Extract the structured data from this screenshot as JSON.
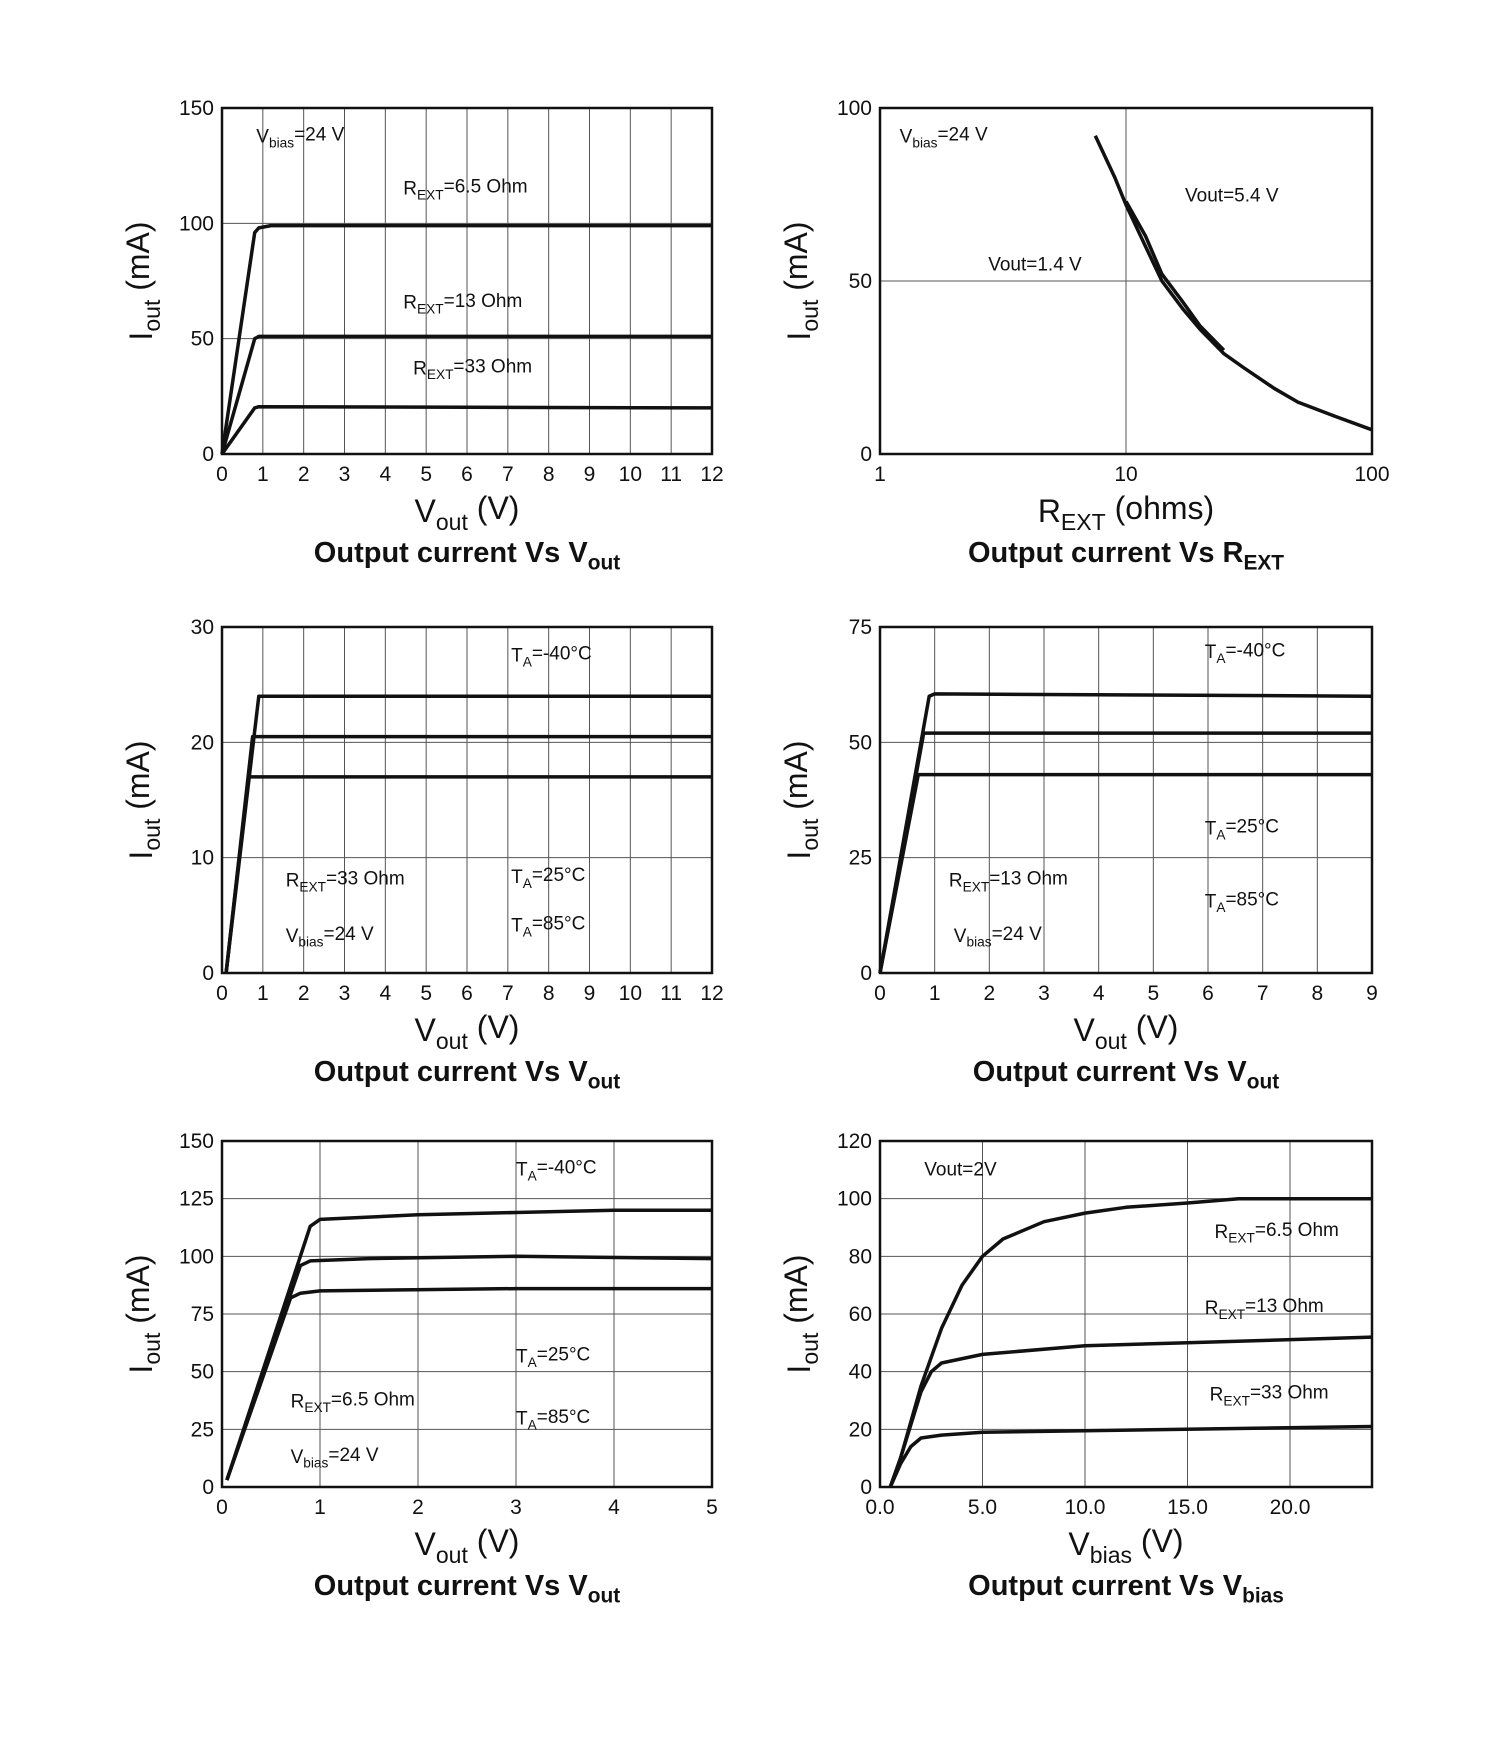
{
  "chart_data": [
    {
      "type": "line",
      "title": [
        {
          "text": "Output current Vs V"
        },
        {
          "text": "out",
          "sub": true
        }
      ],
      "x_label": [
        {
          "text": "V"
        },
        {
          "text": "out",
          "sub": true
        },
        {
          "text": " (V)"
        }
      ],
      "y_label": [
        {
          "text": "I"
        },
        {
          "text": "out",
          "sub": true
        },
        {
          "text": " (mA)"
        }
      ],
      "xlim": [
        0,
        12
      ],
      "xticks": [
        0,
        1,
        2,
        3,
        4,
        5,
        6,
        7,
        8,
        9,
        10,
        11,
        12
      ],
      "ylim": [
        0,
        150
      ],
      "yticks": [
        0,
        50,
        100,
        150
      ],
      "grid": true,
      "series": [
        {
          "color": "#111111",
          "x": [
            0,
            0.8,
            0.9,
            1.2,
            12
          ],
          "values": [
            0,
            96,
            98,
            99,
            99
          ]
        },
        {
          "color": "#111111",
          "x": [
            0,
            0.8,
            0.9,
            12
          ],
          "values": [
            0,
            50,
            51,
            51
          ]
        },
        {
          "color": "#111111",
          "x": [
            0,
            0.8,
            0.9,
            12
          ],
          "values": [
            0,
            20,
            20.5,
            20
          ]
        }
      ],
      "annotations": [
        [
          {
            "text": "V"
          },
          {
            "text": "bias",
            "sub": true
          },
          {
            "text": "=24 V"
          }
        ],
        [
          {
            "text": "R"
          },
          {
            "text": "EXT",
            "sub": true
          },
          {
            "text": "=6.5 Ohm"
          }
        ],
        [
          {
            "text": "R"
          },
          {
            "text": "EXT",
            "sub": true
          },
          {
            "text": "=13 Ohm"
          }
        ],
        [
          {
            "text": "R"
          },
          {
            "text": "EXT",
            "sub": true
          },
          {
            "text": "=33 Ohm"
          }
        ]
      ]
    },
    {
      "type": "line",
      "title": [
        {
          "text": "Output current Vs R"
        },
        {
          "text": "EXT",
          "sub": true
        }
      ],
      "x_label": [
        {
          "text": "R"
        },
        {
          "text": "EXT",
          "sub": true
        },
        {
          "text": " (ohms)"
        }
      ],
      "y_label": [
        {
          "text": "I"
        },
        {
          "text": "out",
          "sub": true
        },
        {
          "text": " (mA)"
        }
      ],
      "xscale": "log",
      "xlim": [
        1,
        100
      ],
      "xticks": [
        1,
        10,
        100
      ],
      "ylim": [
        0,
        100
      ],
      "yticks": [
        0,
        50,
        100
      ],
      "grid": true,
      "series": [
        {
          "color": "#111111",
          "x": [
            7.5,
            9,
            10,
            12,
            14,
            17,
            20,
            25,
            30,
            40,
            50,
            70,
            100
          ],
          "values": [
            92,
            80,
            72,
            60,
            50,
            42,
            36,
            29,
            25,
            19,
            15,
            11,
            7
          ]
        },
        {
          "color": "#111111",
          "x": [
            10,
            12,
            14,
            17,
            20,
            25
          ],
          "values": [
            73,
            63,
            52,
            44,
            37,
            30
          ]
        }
      ],
      "annotations": [
        [
          {
            "text": "V"
          },
          {
            "text": "bias",
            "sub": true
          },
          {
            "text": "=24 V"
          }
        ],
        [
          {
            "text": "Vout=5.4 V"
          }
        ],
        [
          {
            "text": "Vout=1.4 V"
          }
        ]
      ]
    },
    {
      "type": "line",
      "title": [
        {
          "text": "Output current Vs V"
        },
        {
          "text": "out",
          "sub": true
        }
      ],
      "x_label": [
        {
          "text": "V"
        },
        {
          "text": "out",
          "sub": true
        },
        {
          "text": " (V)"
        }
      ],
      "y_label": [
        {
          "text": "I"
        },
        {
          "text": "out",
          "sub": true
        },
        {
          "text": " (mA)"
        }
      ],
      "xlim": [
        0,
        12
      ],
      "xticks": [
        0,
        1,
        2,
        3,
        4,
        5,
        6,
        7,
        8,
        9,
        10,
        11,
        12
      ],
      "ylim": [
        0,
        30
      ],
      "yticks": [
        0,
        10,
        20,
        30
      ],
      "grid": true,
      "series": [
        {
          "color": "#111111",
          "x": [
            0.1,
            0.9,
            12
          ],
          "values": [
            0,
            24,
            24
          ]
        },
        {
          "color": "#111111",
          "x": [
            0.1,
            0.75,
            12
          ],
          "values": [
            0,
            20.5,
            20.5
          ]
        },
        {
          "color": "#111111",
          "x": [
            0.1,
            0.65,
            12
          ],
          "values": [
            0,
            17,
            17
          ]
        }
      ],
      "annotations": [
        [
          {
            "text": "T"
          },
          {
            "text": "A",
            "sub": true
          },
          {
            "text": "=-40°C"
          }
        ],
        [
          {
            "text": "T"
          },
          {
            "text": "A",
            "sub": true
          },
          {
            "text": "=25°C"
          }
        ],
        [
          {
            "text": "T"
          },
          {
            "text": "A",
            "sub": true
          },
          {
            "text": "=85°C"
          }
        ],
        [
          {
            "text": "R"
          },
          {
            "text": "EXT",
            "sub": true
          },
          {
            "text": "=33 Ohm"
          }
        ],
        [
          {
            "text": "V"
          },
          {
            "text": "bias",
            "sub": true
          },
          {
            "text": "=24 V"
          }
        ]
      ]
    },
    {
      "type": "line",
      "title": [
        {
          "text": "Output current Vs V"
        },
        {
          "text": "out",
          "sub": true
        }
      ],
      "x_label": [
        {
          "text": "V"
        },
        {
          "text": "out",
          "sub": true
        },
        {
          "text": " (V)"
        }
      ],
      "y_label": [
        {
          "text": "I"
        },
        {
          "text": "out",
          "sub": true
        },
        {
          "text": " (mA)"
        }
      ],
      "xlim": [
        0,
        9
      ],
      "xticks": [
        0,
        1,
        2,
        3,
        4,
        5,
        6,
        7,
        8,
        9
      ],
      "ylim": [
        0,
        75
      ],
      "yticks": [
        0,
        25,
        50,
        75
      ],
      "grid": true,
      "series": [
        {
          "color": "#111111",
          "x": [
            0,
            0.9,
            1,
            9
          ],
          "values": [
            0,
            60,
            60.5,
            60
          ]
        },
        {
          "color": "#111111",
          "x": [
            0,
            0.8,
            9
          ],
          "values": [
            0,
            52,
            52
          ]
        },
        {
          "color": "#111111",
          "x": [
            0,
            0.7,
            9
          ],
          "values": [
            0,
            43,
            43
          ]
        }
      ],
      "annotations": [
        [
          {
            "text": "T"
          },
          {
            "text": "A",
            "sub": true
          },
          {
            "text": "=-40°C"
          }
        ],
        [
          {
            "text": "T"
          },
          {
            "text": "A",
            "sub": true
          },
          {
            "text": "=25°C"
          }
        ],
        [
          {
            "text": "T"
          },
          {
            "text": "A",
            "sub": true
          },
          {
            "text": "=85°C"
          }
        ],
        [
          {
            "text": "R"
          },
          {
            "text": "EXT",
            "sub": true
          },
          {
            "text": "=13 Ohm"
          }
        ],
        [
          {
            "text": "V"
          },
          {
            "text": "bias",
            "sub": true
          },
          {
            "text": "=24 V"
          }
        ]
      ]
    },
    {
      "type": "line",
      "title": [
        {
          "text": "Output current Vs V"
        },
        {
          "text": "out",
          "sub": true
        }
      ],
      "x_label": [
        {
          "text": "V"
        },
        {
          "text": "out",
          "sub": true
        },
        {
          "text": " (V)"
        }
      ],
      "y_label": [
        {
          "text": "I"
        },
        {
          "text": "out",
          "sub": true
        },
        {
          "text": " (mA)"
        }
      ],
      "xlim": [
        0,
        5
      ],
      "xticks": [
        0,
        1,
        2,
        3,
        4,
        5
      ],
      "ylim": [
        0,
        150
      ],
      "yticks": [
        0,
        25,
        50,
        75,
        100,
        125,
        150
      ],
      "grid": true,
      "series": [
        {
          "color": "#111111",
          "x": [
            0.05,
            0.9,
            1,
            2,
            3,
            4,
            5
          ],
          "values": [
            3,
            113,
            116,
            118,
            119,
            120,
            120
          ]
        },
        {
          "color": "#111111",
          "x": [
            0.05,
            0.8,
            0.9,
            1.5,
            3,
            5
          ],
          "values": [
            3,
            96,
            98,
            99,
            100,
            99
          ]
        },
        {
          "color": "#111111",
          "x": [
            0.05,
            0.7,
            0.8,
            1,
            3,
            5
          ],
          "values": [
            3,
            82,
            84,
            85,
            86,
            86
          ]
        }
      ],
      "annotations": [
        [
          {
            "text": "T"
          },
          {
            "text": "A",
            "sub": true
          },
          {
            "text": "=-40°C"
          }
        ],
        [
          {
            "text": "T"
          },
          {
            "text": "A",
            "sub": true
          },
          {
            "text": "=25°C"
          }
        ],
        [
          {
            "text": "T"
          },
          {
            "text": "A",
            "sub": true
          },
          {
            "text": "=85°C"
          }
        ],
        [
          {
            "text": "R"
          },
          {
            "text": "EXT",
            "sub": true
          },
          {
            "text": "=6.5 Ohm"
          }
        ],
        [
          {
            "text": "V"
          },
          {
            "text": "bias",
            "sub": true
          },
          {
            "text": "=24 V"
          }
        ]
      ]
    },
    {
      "type": "line",
      "title": [
        {
          "text": "Output current Vs V"
        },
        {
          "text": "bias",
          "sub": true
        }
      ],
      "x_label": [
        {
          "text": "V"
        },
        {
          "text": "bias",
          "sub": true
        },
        {
          "text": " (V)"
        }
      ],
      "y_label": [
        {
          "text": "I"
        },
        {
          "text": "out",
          "sub": true
        },
        {
          "text": " (mA)"
        }
      ],
      "xlim": [
        0,
        24
      ],
      "xticks": [
        {
          "value": 0,
          "label": "0.0"
        },
        {
          "value": 5,
          "label": "5.0"
        },
        {
          "value": 10,
          "label": "10.0"
        },
        {
          "value": 15,
          "label": "15.0"
        },
        {
          "value": 20,
          "label": "20.0"
        }
      ],
      "ylim": [
        0,
        120
      ],
      "yticks": [
        0,
        20,
        40,
        60,
        80,
        100,
        120
      ],
      "grid": true,
      "series": [
        {
          "color": "#111111",
          "x": [
            0.5,
            1,
            2,
            3,
            4,
            5,
            6,
            8,
            10,
            12,
            15,
            17.5,
            24
          ],
          "values": [
            0,
            10,
            35,
            55,
            70,
            80,
            86,
            92,
            95,
            97,
            98.5,
            100,
            100
          ]
        },
        {
          "color": "#111111",
          "x": [
            0.5,
            1,
            2,
            2.5,
            3,
            5,
            10,
            15,
            24
          ],
          "values": [
            0,
            10,
            33,
            40,
            43,
            46,
            49,
            50,
            52
          ]
        },
        {
          "color": "#111111",
          "x": [
            0.5,
            1,
            1.5,
            2,
            3,
            5,
            10,
            24
          ],
          "values": [
            0,
            8,
            14,
            17,
            18,
            19,
            19.5,
            21
          ]
        }
      ],
      "annotations": [
        [
          {
            "text": "Vout=2V"
          }
        ],
        [
          {
            "text": "R"
          },
          {
            "text": "EXT",
            "sub": true
          },
          {
            "text": "=6.5 Ohm"
          }
        ],
        [
          {
            "text": "R"
          },
          {
            "text": "EXT",
            "sub": true
          },
          {
            "text": "=13 Ohm"
          }
        ],
        [
          {
            "text": "R"
          },
          {
            "text": "EXT",
            "sub": true
          },
          {
            "text": "=33 Ohm"
          }
        ]
      ]
    }
  ]
}
